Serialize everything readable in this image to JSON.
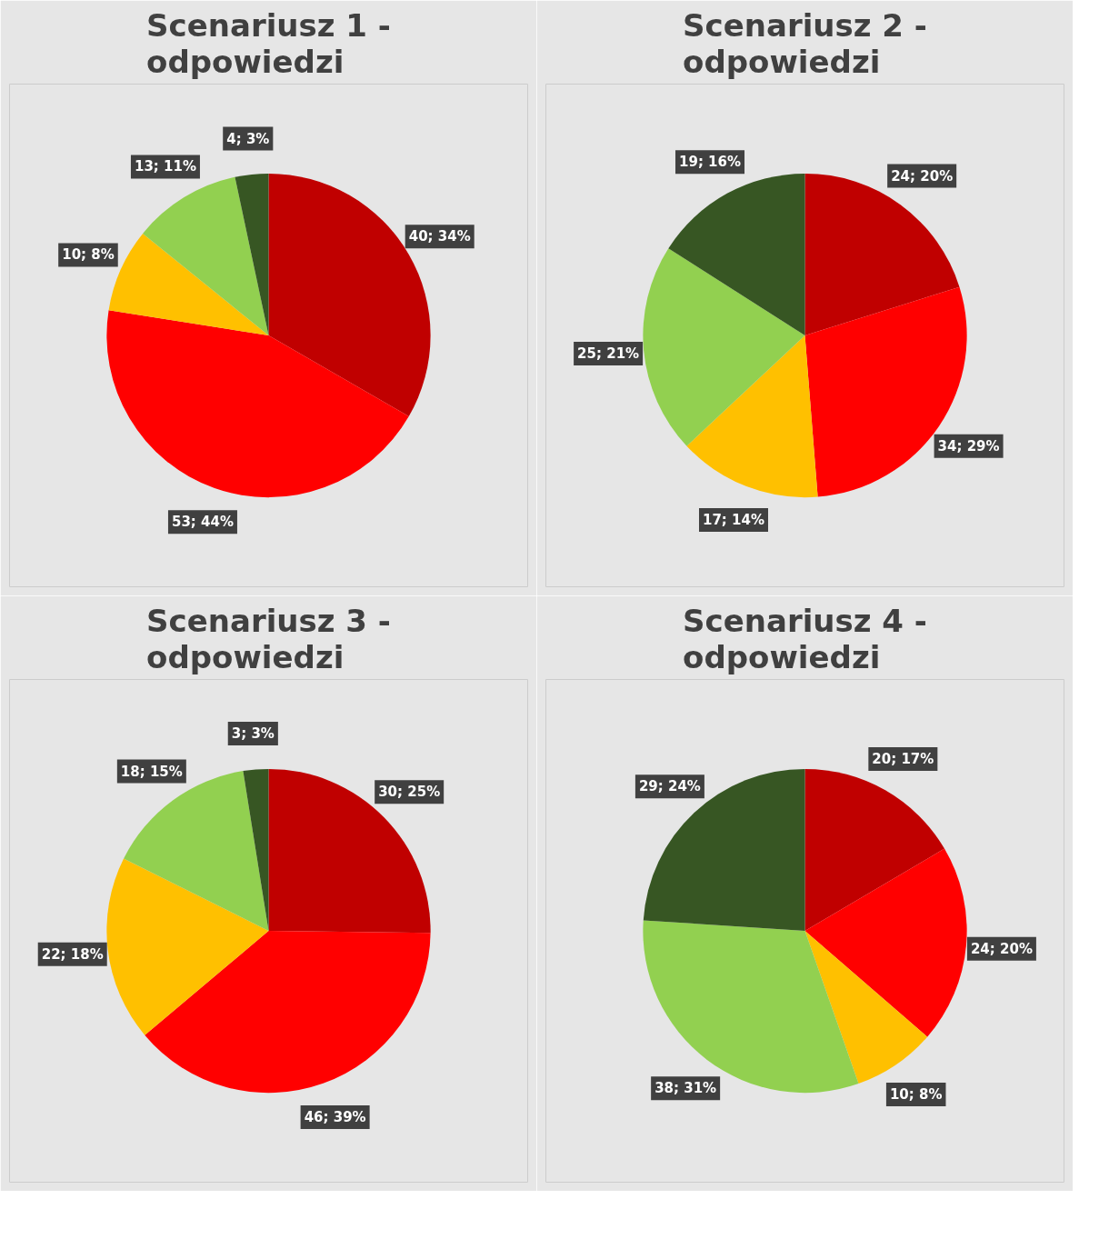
{
  "chart_data": [
    {
      "type": "pie",
      "title": "Scenariusz 1 -\nodpowiedzi",
      "categories": [
        null,
        null,
        null,
        null,
        null
      ],
      "values": [
        40,
        53,
        10,
        13,
        4
      ],
      "colors": [
        "#c00000",
        "#ff0000",
        "#ffc000",
        "#92d050",
        "#375623"
      ],
      "value_labels": [
        "40; 34%",
        "53; 44%",
        "10; 8%",
        "13; 11%",
        "4; 3%"
      ]
    },
    {
      "type": "pie",
      "title": "Scenariusz 2 -\nodpowiedzi",
      "categories": [
        null,
        null,
        null,
        null,
        null
      ],
      "values": [
        24,
        34,
        17,
        25,
        19
      ],
      "colors": [
        "#c00000",
        "#ff0000",
        "#ffc000",
        "#92d050",
        "#375623"
      ],
      "value_labels": [
        "24; 20%",
        "34; 29%",
        "17; 14%",
        "25; 21%",
        "19; 16%"
      ]
    },
    {
      "type": "pie",
      "title": "Scenariusz 3 -\nodpowiedzi",
      "categories": [
        null,
        null,
        null,
        null,
        null
      ],
      "values": [
        30,
        46,
        22,
        18,
        3
      ],
      "colors": [
        "#c00000",
        "#ff0000",
        "#ffc000",
        "#92d050",
        "#375623"
      ],
      "value_labels": [
        "30; 25%",
        "46; 39%",
        "22; 18%",
        "18; 15%",
        "3; 3%"
      ]
    },
    {
      "type": "pie",
      "title": "Scenariusz 4 -\nodpowiedzi",
      "categories": [
        null,
        null,
        null,
        null,
        null
      ],
      "values": [
        20,
        24,
        10,
        38,
        29
      ],
      "colors": [
        "#c00000",
        "#ff0000",
        "#ffc000",
        "#92d050",
        "#375623"
      ],
      "value_labels": [
        "20; 17%",
        "24; 20%",
        "10; 8%",
        "38; 31%",
        "29; 24%"
      ]
    }
  ]
}
